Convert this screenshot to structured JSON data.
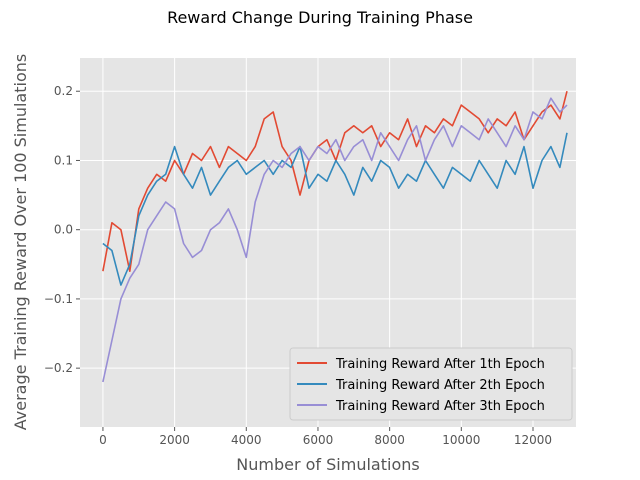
{
  "chart_data": {
    "type": "line",
    "title": "Reward Change During Training Phase",
    "xlabel": "Number of Simulations",
    "ylabel": "Average Training Reward Over 100 Simulations",
    "xlim": [
      -640,
      13200
    ],
    "ylim": [
      -0.285,
      0.248
    ],
    "xticks": [
      0,
      2000,
      4000,
      6000,
      8000,
      10000,
      12000
    ],
    "yticks": [
      -0.2,
      -0.1,
      0.0,
      0.1,
      0.2
    ],
    "xtick_labels": [
      "0",
      "2000",
      "4000",
      "6000",
      "8000",
      "10000",
      "12000"
    ],
    "ytick_labels": [
      "−0.2",
      "−0.1",
      "0.0",
      "0.1",
      "0.2"
    ],
    "grid": true,
    "legend_position": "lower-right",
    "series": [
      {
        "name": "Training Reward After 1th Epoch",
        "color": "#e24a33",
        "x": [
          0,
          250,
          500,
          750,
          1000,
          1250,
          1500,
          1750,
          2000,
          2250,
          2500,
          2750,
          3000,
          3250,
          3500,
          3750,
          4000,
          4250,
          4500,
          4750,
          5000,
          5250,
          5500,
          5750,
          6000,
          6250,
          6500,
          6750,
          7000,
          7250,
          7500,
          7750,
          8000,
          8250,
          8500,
          8750,
          9000,
          9250,
          9500,
          9750,
          10000,
          10250,
          10500,
          10750,
          11000,
          11250,
          11500,
          11750,
          12000,
          12250,
          12500,
          12750,
          12950
        ],
        "y": [
          -0.06,
          0.01,
          0.0,
          -0.06,
          0.03,
          0.06,
          0.08,
          0.07,
          0.1,
          0.08,
          0.11,
          0.1,
          0.12,
          0.09,
          0.12,
          0.11,
          0.1,
          0.12,
          0.16,
          0.17,
          0.12,
          0.1,
          0.05,
          0.1,
          0.12,
          0.13,
          0.1,
          0.14,
          0.15,
          0.14,
          0.15,
          0.12,
          0.14,
          0.13,
          0.16,
          0.12,
          0.15,
          0.14,
          0.16,
          0.15,
          0.18,
          0.17,
          0.16,
          0.14,
          0.16,
          0.15,
          0.17,
          0.13,
          0.15,
          0.17,
          0.18,
          0.16,
          0.2
        ]
      },
      {
        "name": "Training Reward After 2th Epoch",
        "color": "#348abd",
        "x": [
          0,
          250,
          500,
          750,
          1000,
          1250,
          1500,
          1750,
          2000,
          2250,
          2500,
          2750,
          3000,
          3250,
          3500,
          3750,
          4000,
          4250,
          4500,
          4750,
          5000,
          5250,
          5500,
          5750,
          6000,
          6250,
          6500,
          6750,
          7000,
          7250,
          7500,
          7750,
          8000,
          8250,
          8500,
          8750,
          9000,
          9250,
          9500,
          9750,
          10000,
          10250,
          10500,
          10750,
          11000,
          11250,
          11500,
          11750,
          12000,
          12250,
          12500,
          12750,
          12950
        ],
        "y": [
          -0.02,
          -0.03,
          -0.08,
          -0.05,
          0.02,
          0.05,
          0.07,
          0.08,
          0.12,
          0.08,
          0.06,
          0.09,
          0.05,
          0.07,
          0.09,
          0.1,
          0.08,
          0.09,
          0.1,
          0.08,
          0.1,
          0.09,
          0.12,
          0.06,
          0.08,
          0.07,
          0.1,
          0.08,
          0.05,
          0.09,
          0.07,
          0.1,
          0.09,
          0.06,
          0.08,
          0.07,
          0.1,
          0.08,
          0.06,
          0.09,
          0.08,
          0.07,
          0.1,
          0.08,
          0.06,
          0.1,
          0.08,
          0.12,
          0.06,
          0.1,
          0.12,
          0.09,
          0.14
        ]
      },
      {
        "name": "Training Reward After 3th Epoch",
        "color": "#988ed5",
        "x": [
          0,
          250,
          500,
          750,
          1000,
          1250,
          1500,
          1750,
          2000,
          2250,
          2500,
          2750,
          3000,
          3250,
          3500,
          3750,
          4000,
          4250,
          4500,
          4750,
          5000,
          5250,
          5500,
          5750,
          6000,
          6250,
          6500,
          6750,
          7000,
          7250,
          7500,
          7750,
          8000,
          8250,
          8500,
          8750,
          9000,
          9250,
          9500,
          9750,
          10000,
          10250,
          10500,
          10750,
          11000,
          11250,
          11500,
          11750,
          12000,
          12250,
          12500,
          12750,
          12950
        ],
        "y": [
          -0.22,
          -0.16,
          -0.1,
          -0.07,
          -0.05,
          0.0,
          0.02,
          0.04,
          0.03,
          -0.02,
          -0.04,
          -0.03,
          0.0,
          0.01,
          0.03,
          0.0,
          -0.04,
          0.04,
          0.08,
          0.1,
          0.09,
          0.11,
          0.12,
          0.1,
          0.12,
          0.11,
          0.13,
          0.1,
          0.12,
          0.13,
          0.1,
          0.14,
          0.12,
          0.1,
          0.13,
          0.15,
          0.1,
          0.13,
          0.15,
          0.12,
          0.15,
          0.14,
          0.13,
          0.16,
          0.14,
          0.12,
          0.15,
          0.13,
          0.17,
          0.16,
          0.19,
          0.17,
          0.18
        ]
      }
    ]
  }
}
